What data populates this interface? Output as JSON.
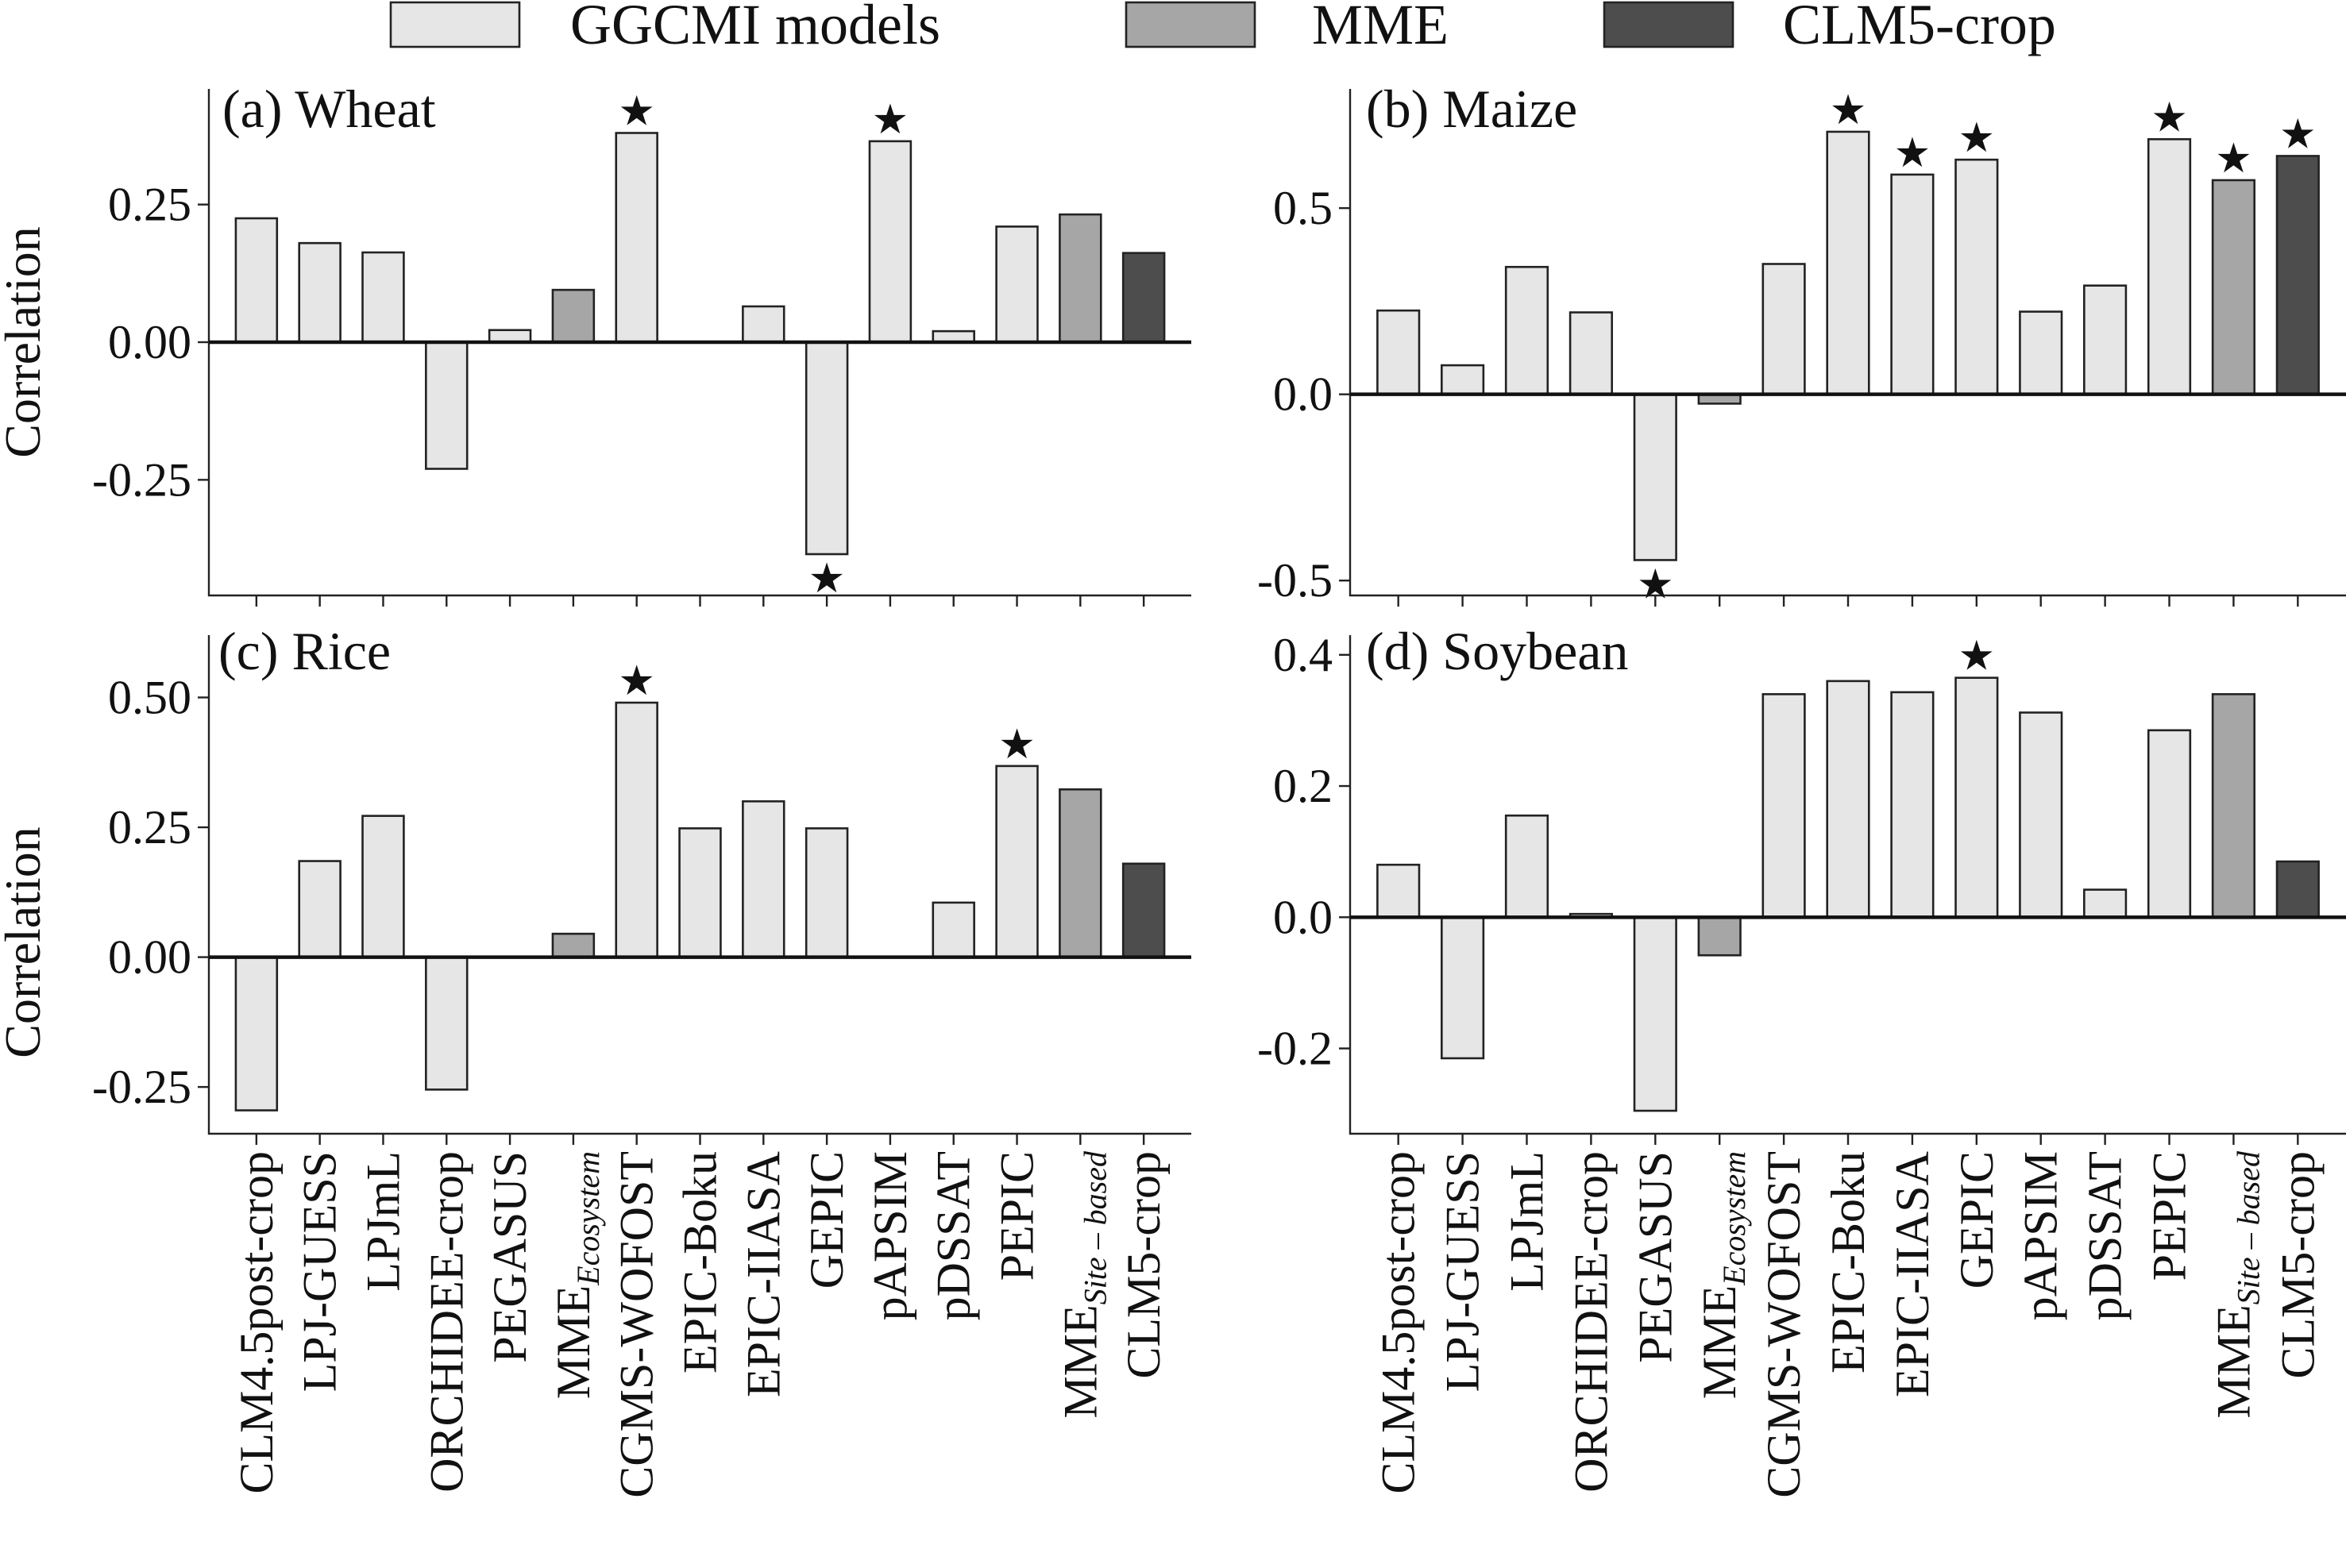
{
  "legend": {
    "items": [
      {
        "label": "GGCMI models",
        "color": "#e6e6e6"
      },
      {
        "label": "MME",
        "color": "#a6a6a6"
      },
      {
        "label": "CLM5-crop",
        "color": "#4d4d4d"
      }
    ]
  },
  "colors": {
    "ggcmi": "#e6e6e6",
    "mme": "#a6a6a6",
    "clm5": "#4d4d4d",
    "star": "#111111"
  },
  "categories": [
    {
      "label": "CLM4.5post-crop",
      "sub": ""
    },
    {
      "label": "LPJ-GUESS",
      "sub": ""
    },
    {
      "label": "LPJmL",
      "sub": ""
    },
    {
      "label": "ORCHIDEE-crop",
      "sub": ""
    },
    {
      "label": "PEGASUS",
      "sub": ""
    },
    {
      "label": "MME",
      "sub": "Ecosystem"
    },
    {
      "label": "CGMS-WOFOST",
      "sub": ""
    },
    {
      "label": "EPIC-Boku",
      "sub": ""
    },
    {
      "label": "EPIC-IIASA",
      "sub": ""
    },
    {
      "label": "GEPIC",
      "sub": ""
    },
    {
      "label": "pAPSIM",
      "sub": ""
    },
    {
      "label": "pDSSAT",
      "sub": ""
    },
    {
      "label": "PEPIC",
      "sub": ""
    },
    {
      "label": "MME",
      "sub": "Site – based"
    },
    {
      "label": "CLM5-crop",
      "sub": ""
    }
  ],
  "bar_groups": [
    "ggcmi",
    "ggcmi",
    "ggcmi",
    "ggcmi",
    "ggcmi",
    "mme",
    "ggcmi",
    "ggcmi",
    "ggcmi",
    "ggcmi",
    "ggcmi",
    "ggcmi",
    "ggcmi",
    "mme",
    "clm5"
  ],
  "chart_data": [
    {
      "type": "bar",
      "title": "(a) Wheat",
      "ylabel": "Correlation",
      "ylim": [
        -0.46,
        0.46
      ],
      "yticks": [
        -0.25,
        0.0,
        0.25
      ],
      "ytick_labels": [
        "-0.25",
        "0.00",
        "0.25"
      ],
      "values": [
        0.225,
        0.18,
        0.163,
        -0.23,
        0.022,
        0.095,
        0.38,
        null,
        0.065,
        -0.385,
        0.365,
        0.02,
        0.21,
        0.232,
        0.162
      ],
      "significant": [
        false,
        false,
        false,
        false,
        false,
        false,
        true,
        false,
        false,
        true,
        true,
        false,
        false,
        false,
        false
      ],
      "show_xticklabels": false
    },
    {
      "type": "bar",
      "title": "(b) Maize",
      "ylabel": "",
      "ylim": [
        -0.54,
        0.82
      ],
      "yticks": [
        -0.5,
        0.0,
        0.5
      ],
      "ytick_labels": [
        "-0.5",
        "0.0",
        "0.5"
      ],
      "values": [
        0.225,
        0.078,
        0.342,
        0.22,
        -0.445,
        -0.025,
        0.35,
        0.705,
        0.59,
        0.63,
        0.222,
        0.292,
        0.685,
        0.575,
        0.64
      ],
      "significant": [
        false,
        false,
        false,
        false,
        true,
        false,
        false,
        true,
        true,
        true,
        false,
        false,
        true,
        true,
        true
      ],
      "show_xticklabels": false
    },
    {
      "type": "bar",
      "title": "(c) Rice",
      "ylabel": "Correlation",
      "ylim": [
        -0.34,
        0.62
      ],
      "yticks": [
        -0.25,
        0.0,
        0.25,
        0.5
      ],
      "ytick_labels": [
        "-0.25",
        "0.00",
        "0.25",
        "0.50"
      ],
      "values": [
        -0.295,
        0.185,
        0.272,
        -0.255,
        null,
        0.045,
        0.49,
        0.248,
        0.3,
        0.248,
        null,
        0.105,
        0.368,
        0.323,
        0.18
      ],
      "significant": [
        false,
        false,
        false,
        false,
        false,
        false,
        true,
        false,
        false,
        false,
        false,
        false,
        true,
        false,
        false
      ],
      "show_xticklabels": true
    },
    {
      "type": "bar",
      "title": "(d) Soybean",
      "ylabel": "",
      "ylim": [
        -0.33,
        0.43
      ],
      "yticks": [
        -0.2,
        0.0,
        0.2,
        0.4
      ],
      "ytick_labels": [
        "-0.2",
        "0.0",
        "0.2",
        "0.4"
      ],
      "values": [
        0.08,
        -0.215,
        0.155,
        0.005,
        -0.295,
        -0.058,
        0.34,
        0.36,
        0.343,
        0.365,
        0.312,
        0.042,
        0.285,
        0.34,
        0.085
      ],
      "significant": [
        false,
        false,
        false,
        false,
        false,
        false,
        false,
        false,
        false,
        true,
        false,
        false,
        false,
        false,
        false
      ],
      "show_xticklabels": true
    }
  ]
}
